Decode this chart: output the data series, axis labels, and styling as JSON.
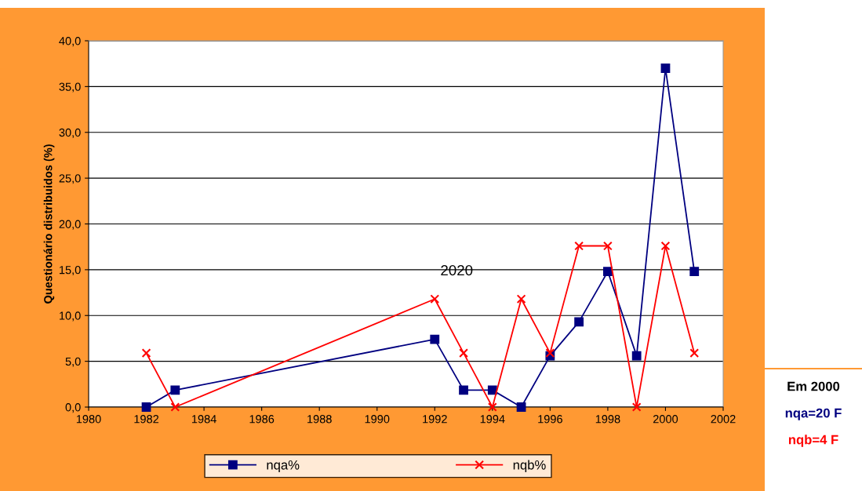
{
  "chart_data": {
    "type": "line",
    "ylabel": "Questionário distribuidos (%)",
    "x": [
      1982,
      1983,
      1992,
      1993,
      1994,
      1995,
      1996,
      1997,
      1998,
      1999,
      2000,
      2001
    ],
    "series": [
      {
        "name": "nqa%",
        "color": "#000080",
        "marker": "square",
        "values": [
          0,
          1.85,
          7.4,
          1.85,
          1.85,
          0,
          5.6,
          9.3,
          14.8,
          5.6,
          37.0,
          14.8
        ]
      },
      {
        "name": "nqb%",
        "color": "#ff0000",
        "marker": "cross",
        "values": [
          5.9,
          0,
          11.8,
          5.9,
          0,
          11.8,
          5.9,
          17.6,
          17.6,
          0,
          17.6,
          5.9
        ]
      }
    ],
    "xlim": [
      1980,
      2002
    ],
    "xticks": [
      1980,
      1982,
      1984,
      1986,
      1988,
      1990,
      1992,
      1994,
      1996,
      1998,
      2000,
      2002
    ],
    "ylim": [
      0,
      40
    ],
    "yticks": [
      {
        "value": 0,
        "label": "0,0"
      },
      {
        "value": 5,
        "label": "5,0"
      },
      {
        "value": 10,
        "label": "10,0"
      },
      {
        "value": 15,
        "label": "15,0"
      },
      {
        "value": 20,
        "label": "20,0"
      },
      {
        "value": 25,
        "label": "25,0"
      },
      {
        "value": 30,
        "label": "30,0"
      },
      {
        "value": 35,
        "label": "35,0"
      },
      {
        "value": 40,
        "label": "40,0"
      }
    ],
    "grid": "y",
    "legend": "bottom",
    "line_style": "solid",
    "annotations": [
      "2020",
      "Em 2000",
      "nqa=20 F",
      "nqb=4 F"
    ]
  }
}
